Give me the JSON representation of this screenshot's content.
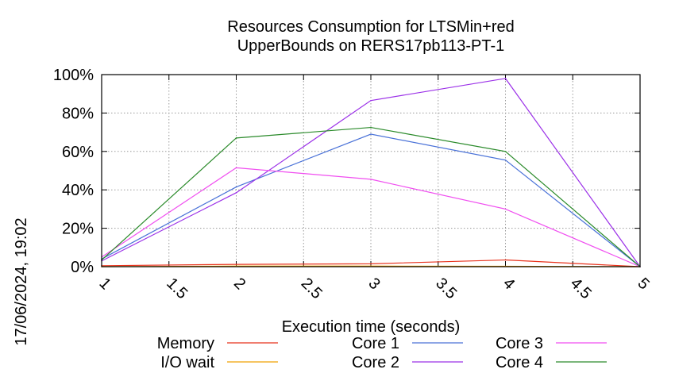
{
  "chart_data": {
    "type": "line",
    "title_lines": [
      "Resources Consumption for LTSMin+red",
      "UpperBounds on RERS17pb113-PT-1"
    ],
    "xlabel": "Execution time (seconds)",
    "ylabel": "",
    "side_label": "17/06/2024, 19:02",
    "xlim": [
      1,
      5
    ],
    "ylim": [
      0,
      100
    ],
    "x_ticks": [
      "1",
      "1.5",
      "2",
      "2.5",
      "3",
      "3.5",
      "4",
      "4.5",
      "5"
    ],
    "y_ticks": [
      "0%",
      "20%",
      "40%",
      "60%",
      "80%",
      "100%"
    ],
    "grid": true,
    "legend_position": "bottom",
    "x": [
      1,
      2,
      3,
      4,
      5
    ],
    "series": [
      {
        "name": "Memory",
        "color": "#e8311b",
        "values": [
          0.5,
          1.2,
          1.5,
          3.5,
          0
        ]
      },
      {
        "name": "I/O wait",
        "color": "#f0a000",
        "values": [
          0,
          0.3,
          0.3,
          0.2,
          0
        ]
      },
      {
        "name": "Core 1",
        "color": "#4a72d8",
        "values": [
          4,
          41.5,
          69,
          55.5,
          0
        ]
      },
      {
        "name": "Core 2",
        "color": "#9b30e8",
        "values": [
          3,
          38.5,
          86.5,
          98,
          0
        ]
      },
      {
        "name": "Core 3",
        "color": "#f04ef0",
        "values": [
          5,
          51.5,
          45.5,
          30,
          0
        ]
      },
      {
        "name": "Core 4",
        "color": "#2a8a2a",
        "values": [
          3.5,
          67,
          72.5,
          60,
          0
        ]
      }
    ]
  }
}
